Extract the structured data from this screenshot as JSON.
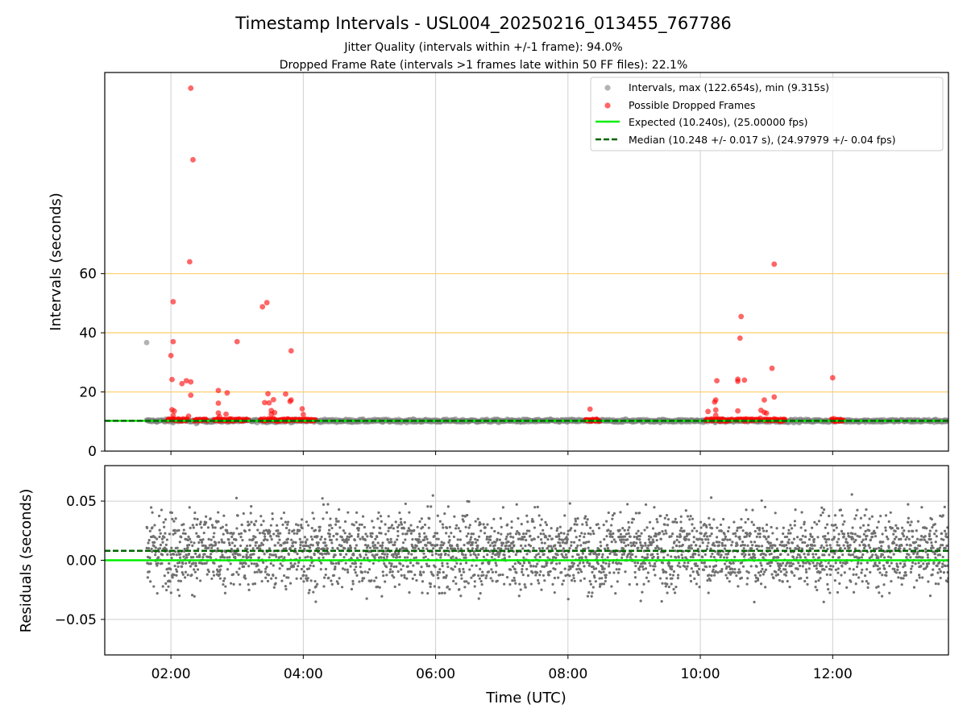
{
  "figure": {
    "title": "Timestamp Intervals - USL004_20250216_013455_767786",
    "subtitle_1": "Jitter Quality (intervals within +/-1 frame): 94.0%",
    "subtitle_2": "Dropped Frame Rate (intervals >1 frames late within 50 FF files): 22.1%",
    "xlabel": "Time (UTC)"
  },
  "chart_data": [
    {
      "type": "scatter",
      "panel": "intervals",
      "ylabel": "Intervals (seconds)",
      "xlim": [
        "01:00",
        "13:45"
      ],
      "ylim": [
        0,
        128
      ],
      "x_ticks": [
        "02:00",
        "04:00",
        "06:00",
        "08:00",
        "10:00",
        "12:00"
      ],
      "y_ticks": [
        0,
        20,
        40,
        60
      ],
      "grid": "vertical at x ticks; horizontal orange lines at 20, 40, 60",
      "reference_lines": [
        20,
        40,
        60
      ],
      "legend_position": "top-right",
      "series": [
        {
          "name": "Intervals, max (122.654s), min (9.315s)",
          "kind": "scatter",
          "color": "#808080",
          "baseline": 10.24,
          "x_range": [
            "01:38",
            "13:45"
          ],
          "outliers": [
            [
              "01:38",
              36.7
            ],
            [
              "02:23",
              9.3
            ],
            [
              "03:27",
              9.6
            ]
          ]
        },
        {
          "name": "Possible Dropped Frames",
          "kind": "scatter",
          "color": "#ff0000",
          "points": [
            [
              "02:01",
              24.2
            ],
            [
              "02:00",
              32.3
            ],
            [
              "02:02",
              37.0
            ],
            [
              "02:02",
              50.5
            ],
            [
              "02:01",
              14.0
            ],
            [
              "02:02",
              12.0
            ],
            [
              "02:03",
              13.5
            ],
            [
              "02:10",
              22.8
            ],
            [
              "02:14",
              23.8
            ],
            [
              "02:18",
              23.4
            ],
            [
              "02:18",
              18.9
            ],
            [
              "02:16",
              11.8
            ],
            [
              "02:17",
              64.0
            ],
            [
              "02:18",
              122.7
            ],
            [
              "02:20",
              98.5
            ],
            [
              "02:43",
              20.5
            ],
            [
              "02:43",
              16.2
            ],
            [
              "02:43",
              12.9
            ],
            [
              "02:44",
              11.6
            ],
            [
              "02:51",
              19.7
            ],
            [
              "02:50",
              12.5
            ],
            [
              "03:00",
              37.0
            ],
            [
              "03:23",
              48.8
            ],
            [
              "03:27",
              50.2
            ],
            [
              "03:25",
              16.4
            ],
            [
              "03:28",
              19.4
            ],
            [
              "03:29",
              16.3
            ],
            [
              "03:31",
              13.7
            ],
            [
              "03:31",
              12.5
            ],
            [
              "03:33",
              17.4
            ],
            [
              "03:34",
              13.0
            ],
            [
              "03:44",
              19.3
            ],
            [
              "03:48",
              16.8
            ],
            [
              "03:49",
              17.3
            ],
            [
              "03:49",
              33.9
            ],
            [
              "03:59",
              14.3
            ],
            [
              "04:00",
              12.4
            ],
            [
              "08:20",
              14.2
            ],
            [
              "10:07",
              13.4
            ],
            [
              "10:13",
              16.6
            ],
            [
              "10:14",
              17.3
            ],
            [
              "10:14",
              13.9
            ],
            [
              "10:15",
              23.8
            ],
            [
              "10:14",
              12.1
            ],
            [
              "10:34",
              23.6
            ],
            [
              "10:34",
              24.3
            ],
            [
              "10:34",
              13.6
            ],
            [
              "10:36",
              38.2
            ],
            [
              "10:37",
              45.5
            ],
            [
              "10:40",
              24.0
            ],
            [
              "10:55",
              13.8
            ],
            [
              "10:58",
              17.3
            ],
            [
              "10:58",
              13.1
            ],
            [
              "11:00",
              12.8
            ],
            [
              "11:05",
              28.0
            ],
            [
              "11:07",
              63.2
            ],
            [
              "11:07",
              18.3
            ],
            [
              "12:00",
              24.8
            ]
          ],
          "baseline_clusters": [
            [
              "01:57",
              "02:15"
            ],
            [
              "02:21",
              "02:33"
            ],
            [
              "02:39",
              "03:10"
            ],
            [
              "03:21",
              "04:11"
            ],
            [
              "08:16",
              "08:29"
            ],
            [
              "10:05",
              "10:29"
            ],
            [
              "10:32",
              "10:55"
            ],
            [
              "10:58",
              "11:17"
            ],
            [
              "11:59",
              "12:10"
            ]
          ]
        },
        {
          "name": "Expected (10.240s), (25.00000 fps)",
          "kind": "line",
          "value": 10.24,
          "color": "#00ee00"
        },
        {
          "name": "Median (10.248 +/- 0.017 s), (24.97979 +/- 0.04 fps)",
          "kind": "dashed-line",
          "value": 10.248,
          "color": "#006400"
        }
      ]
    },
    {
      "type": "scatter",
      "panel": "residuals",
      "ylabel": "Residuals (seconds)",
      "xlim": [
        "01:00",
        "13:45"
      ],
      "ylim": [
        -0.08,
        0.08
      ],
      "x_ticks": [
        "02:00",
        "04:00",
        "06:00",
        "08:00",
        "10:00",
        "12:00"
      ],
      "y_ticks": [
        "0.05",
        "0.00",
        "−0.05"
      ],
      "grid": "both",
      "series": [
        {
          "name": "",
          "kind": "scatter",
          "color": "#707070",
          "x_range": [
            "01:38",
            "13:45"
          ],
          "y_range": [
            -0.042,
            0.058
          ],
          "center": 0.008
        },
        {
          "name": "",
          "kind": "line",
          "value": 0.0,
          "color": "#00ee00"
        },
        {
          "name": "",
          "kind": "dashed-line",
          "value": 0.008,
          "color": "#006400"
        }
      ]
    }
  ]
}
